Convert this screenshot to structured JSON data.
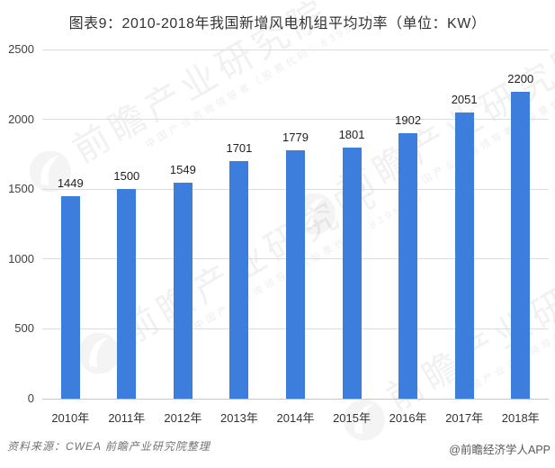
{
  "title": "图表9：2010-2018年我国新增风电机组平均功率（单位：KW）",
  "chart_data": {
    "type": "bar",
    "title": "图表9：2010-2018年我国新增风电机组平均功率（单位：KW）",
    "categories": [
      "2010年",
      "2011年",
      "2012年",
      "2013年",
      "2014年",
      "2015年",
      "2016年",
      "2017年",
      "2018年"
    ],
    "values": [
      1449,
      1500,
      1549,
      1701,
      1779,
      1801,
      1902,
      2051,
      2200
    ],
    "xlabel": "",
    "ylabel": "",
    "unit": "KW",
    "ylim": [
      0,
      2500
    ],
    "yticks": [
      0,
      500,
      1000,
      1500,
      2000,
      2500
    ],
    "grid": true,
    "legend": "none",
    "value_labels": true,
    "bar_color": "#3d7edd",
    "gridline_color": "#dcdcdc",
    "label_color": "#1f1f1f"
  },
  "watermark": {
    "brand": "前瞻产业研究院",
    "tagline": "中国产业咨询领导者（股票代码：839599）"
  },
  "footer": {
    "source": "资料来源：CWEA  前瞻产业研究院整理",
    "credit": "@前瞻经济学人APP"
  }
}
